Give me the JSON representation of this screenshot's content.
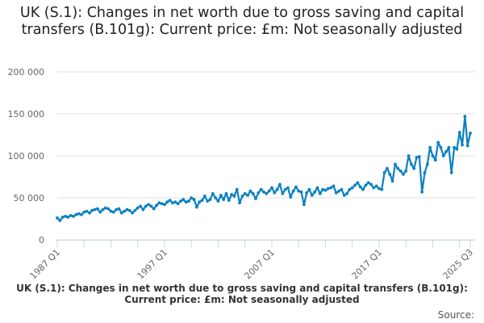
{
  "chart_data": {
    "type": "line",
    "title": "UK (S.1): Changes in net worth due to gross saving and capital transfers (B.101g): Current price: £m: Not seasonally adjusted",
    "series": [
      {
        "name": "UK (S.1): Changes in net worth due to gross saving and capital transfers (B.101g): Current price: £m: Not seasonally adjusted",
        "color": "#0b80c3",
        "start": "1987 Q1",
        "end": "2025 Q3",
        "frequency": "quarterly",
        "values": [
          26000,
          23000,
          27000,
          28000,
          27000,
          29000,
          28000,
          30000,
          31000,
          30000,
          33000,
          34000,
          32000,
          35000,
          36000,
          37000,
          33000,
          36000,
          38000,
          37000,
          34000,
          33000,
          36000,
          37000,
          32000,
          34000,
          36000,
          35000,
          32000,
          35000,
          38000,
          40000,
          36000,
          40000,
          42000,
          40000,
          37000,
          41000,
          44000,
          43000,
          42000,
          45000,
          47000,
          44000,
          45000,
          43000,
          46000,
          48000,
          45000,
          46000,
          50000,
          48000,
          39000,
          45000,
          47000,
          52000,
          46000,
          48000,
          55000,
          50000,
          46000,
          53000,
          48000,
          55000,
          47000,
          54000,
          52000,
          60000,
          44000,
          52000,
          55000,
          53000,
          58000,
          55000,
          49000,
          56000,
          60000,
          57000,
          55000,
          58000,
          62000,
          56000,
          60000,
          66000,
          55000,
          60000,
          62000,
          51000,
          58000,
          63000,
          58000,
          57000,
          42000,
          56000,
          60000,
          53000,
          57000,
          62000,
          55000,
          60000,
          59000,
          61000,
          62000,
          64000,
          56000,
          58000,
          60000,
          53000,
          55000,
          60000,
          62000,
          65000,
          68000,
          63000,
          60000,
          65000,
          68000,
          66000,
          62000,
          64000,
          61000,
          60000,
          80000,
          85000,
          78000,
          70000,
          90000,
          85000,
          82000,
          78000,
          82000,
          100000,
          90000,
          85000,
          98000,
          99000,
          57000,
          80000,
          90000,
          110000,
          100000,
          95000,
          116000,
          110000,
          100000,
          105000,
          110000,
          80000,
          110000,
          108000,
          128000,
          113000,
          147000,
          112000,
          127000
        ]
      }
    ],
    "x_tick_labels": [
      "1987 Q1",
      "1997 Q1",
      "2007 Q1",
      "2017 Q1",
      "2025 Q3"
    ],
    "y_tick_labels": [
      "0",
      "50 000",
      "100 000",
      "150 000",
      "200 000"
    ],
    "yticks": [
      0,
      50000,
      100000,
      150000,
      200000
    ],
    "ylim": [
      0,
      200000
    ],
    "grid": "horizontal",
    "legend": "bottom",
    "source_label": "Source:"
  }
}
